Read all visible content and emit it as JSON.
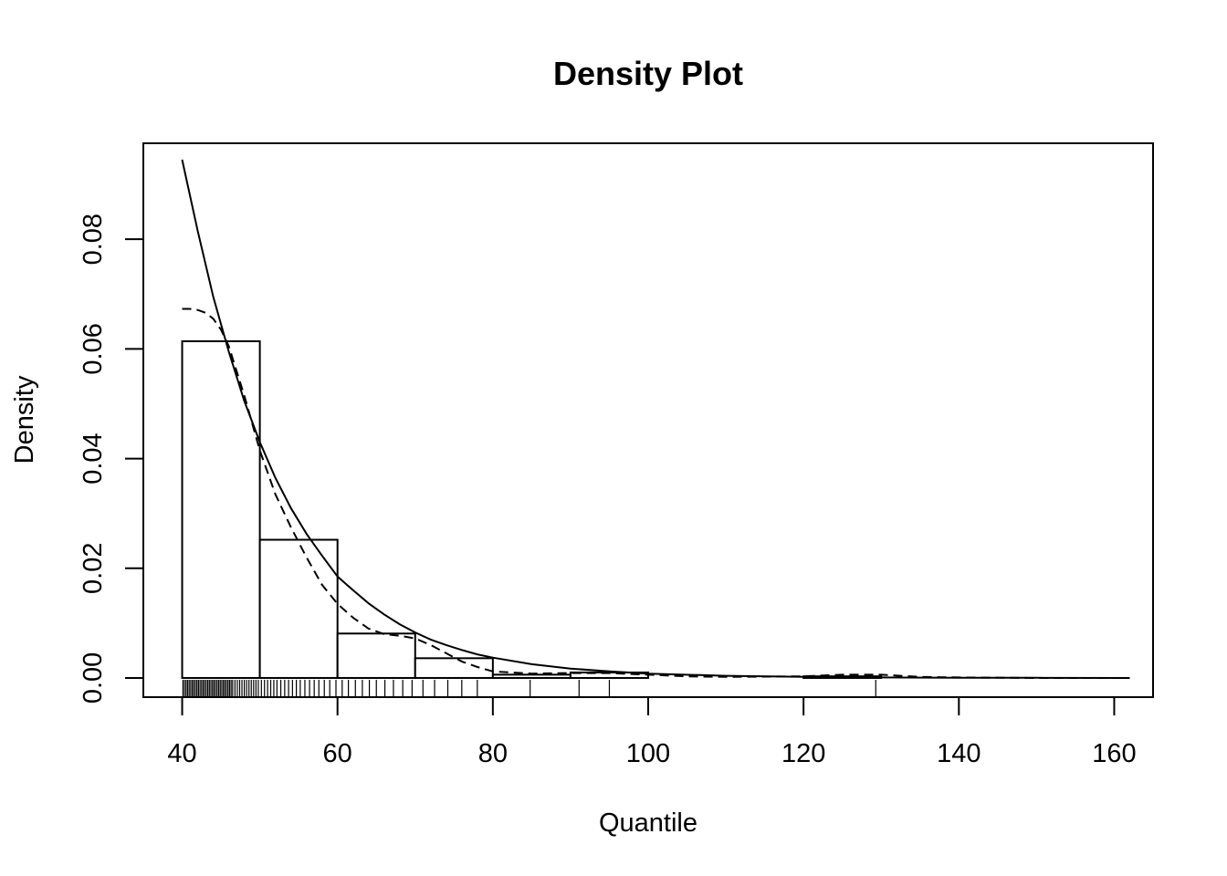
{
  "chart_data": {
    "type": "histogram",
    "title": "Density Plot",
    "xlabel": "Quantile",
    "ylabel": "Density",
    "xlim": [
      35,
      165
    ],
    "ylim": [
      -0.0035,
      0.0975
    ],
    "x_ticks": [
      40,
      60,
      80,
      100,
      120,
      140,
      160
    ],
    "x_tick_labels": [
      "40",
      "60",
      "80",
      "100",
      "120",
      "140",
      "160"
    ],
    "y_ticks": [
      0.0,
      0.02,
      0.04,
      0.06,
      0.08
    ],
    "y_tick_labels": [
      "0.00",
      "0.02",
      "0.04",
      "0.06",
      "0.08"
    ],
    "histogram": {
      "breaks": [
        40,
        50,
        60,
        70,
        80,
        90,
        100,
        110,
        120,
        130
      ],
      "density": [
        0.0614,
        0.0252,
        0.0081,
        0.0036,
        0.0006,
        0.001,
        0.0,
        0.0,
        0.0003
      ]
    },
    "fitted_density": {
      "name": "",
      "style": "solid",
      "x": [
        40,
        42,
        44,
        46,
        48,
        50,
        52,
        54,
        56,
        58,
        60,
        62,
        64,
        66,
        68,
        70,
        72,
        74,
        76,
        78,
        80,
        85,
        90,
        95,
        100,
        110,
        120,
        130,
        140,
        150,
        162
      ],
      "y": [
        0.0945,
        0.0815,
        0.0695,
        0.0595,
        0.0505,
        0.043,
        0.0365,
        0.031,
        0.0263,
        0.0223,
        0.0185,
        0.016,
        0.0136,
        0.0116,
        0.0098,
        0.0083,
        0.007,
        0.006,
        0.0051,
        0.0043,
        0.0037,
        0.0025,
        0.0017,
        0.0012,
        0.0008,
        0.0004,
        0.0002,
        0.0001,
        5e-05,
        2e-05,
        0.0
      ]
    },
    "kernel_density": {
      "name": "",
      "style": "dashed",
      "x": [
        40,
        41,
        42,
        43,
        44,
        45,
        46,
        48,
        50,
        52,
        54,
        56,
        58,
        60,
        62,
        64,
        66,
        68,
        70,
        72,
        74,
        76,
        78,
        80,
        85,
        90,
        95,
        100,
        105,
        110,
        120,
        125,
        130,
        135,
        140,
        150,
        162
      ],
      "y": [
        0.0673,
        0.0673,
        0.0671,
        0.0666,
        0.0655,
        0.0635,
        0.0605,
        0.0515,
        0.0415,
        0.0335,
        0.0275,
        0.022,
        0.017,
        0.0135,
        0.011,
        0.009,
        0.008,
        0.0077,
        0.0072,
        0.006,
        0.0045,
        0.003,
        0.002,
        0.0012,
        0.0008,
        0.0009,
        0.0009,
        0.0006,
        0.0003,
        0.0002,
        0.0003,
        0.0006,
        0.0006,
        0.0002,
        0.0001,
        0.0,
        0.0
      ]
    },
    "rug": [
      40.1,
      40.3,
      40.5,
      40.7,
      40.9,
      41.1,
      41.3,
      41.5,
      41.7,
      41.9,
      42.1,
      42.3,
      42.5,
      42.7,
      42.9,
      43.1,
      43.3,
      43.5,
      43.7,
      43.9,
      44.1,
      44.3,
      44.5,
      44.7,
      44.9,
      45.1,
      45.3,
      45.5,
      45.7,
      45.9,
      46.1,
      46.3,
      46.5,
      46.8,
      47.1,
      47.4,
      47.7,
      48.0,
      48.3,
      48.6,
      48.9,
      49.2,
      49.5,
      49.8,
      50.2,
      50.6,
      51.0,
      51.4,
      51.8,
      52.2,
      52.7,
      53.2,
      53.7,
      54.2,
      54.7,
      55.2,
      55.8,
      56.4,
      57.0,
      57.6,
      58.3,
      59.0,
      59.8,
      60.6,
      61.4,
      62.3,
      63.2,
      64.1,
      65.0,
      66.1,
      67.2,
      68.4,
      69.6,
      71.0,
      72.5,
      74.2,
      76.0,
      78.0,
      84.8,
      91.1,
      95.0,
      129.3
    ]
  }
}
